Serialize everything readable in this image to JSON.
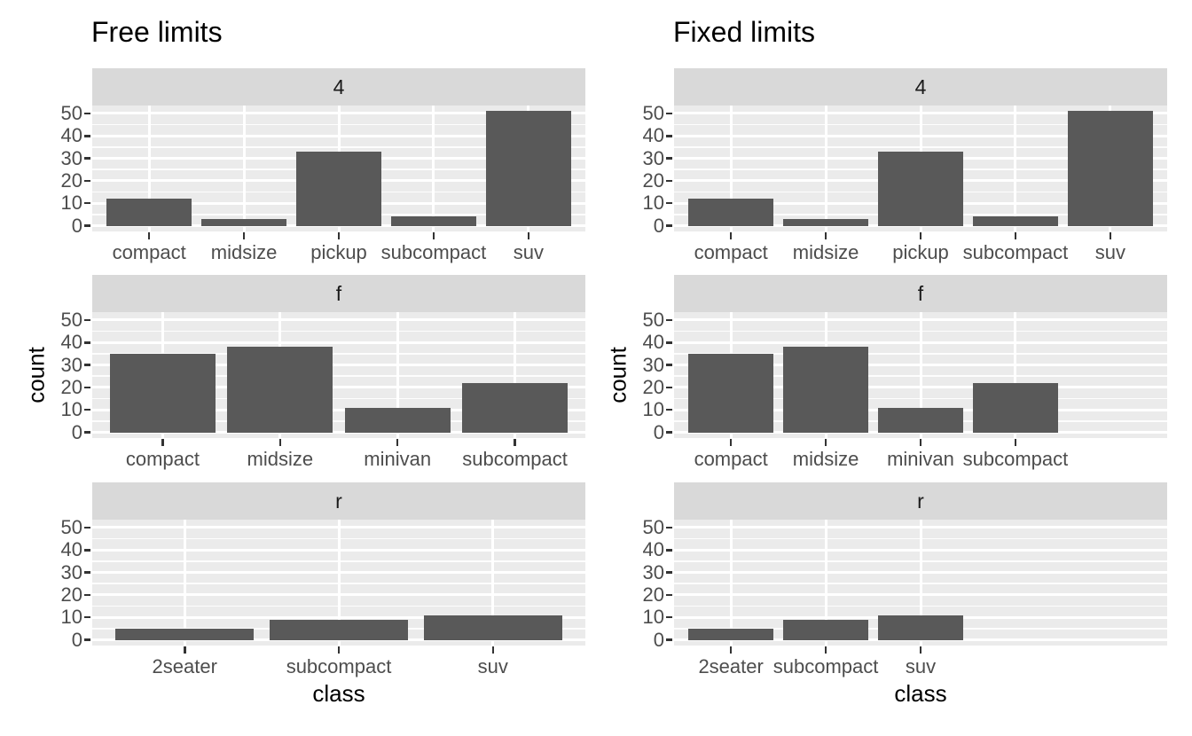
{
  "colors": {
    "background": "#FFFFFF",
    "bar_fill": "#595959",
    "panel_background": "#EBEBEB",
    "strip_background": "#D9D9D9",
    "grid": "#FFFFFF",
    "axis_text": "#4D4D4D",
    "strip_text": "#1A1A1A",
    "title_text": "#000000",
    "tick_mark": "#333333"
  },
  "chart_data": [
    {
      "type": "bar",
      "title": "Free limits",
      "xlabel": "class",
      "ylabel": "count",
      "ylim": [
        -2.55,
        53.55
      ],
      "y_ticks": [
        0,
        10,
        20,
        30,
        40,
        50
      ],
      "y_minor_ticks": [
        5,
        15,
        25,
        35,
        45
      ],
      "grid": "on",
      "x_scale": "free",
      "facets": [
        {
          "label": "4",
          "categories": [
            "compact",
            "midsize",
            "pickup",
            "subcompact",
            "suv"
          ],
          "values": [
            12,
            3,
            33,
            4,
            51
          ]
        },
        {
          "label": "f",
          "categories": [
            "compact",
            "midsize",
            "minivan",
            "subcompact"
          ],
          "values": [
            35,
            38,
            11,
            22
          ]
        },
        {
          "label": "r",
          "categories": [
            "2seater",
            "subcompact",
            "suv"
          ],
          "values": [
            5,
            9,
            11
          ]
        }
      ]
    },
    {
      "type": "bar",
      "title": "Fixed limits",
      "xlabel": "class",
      "ylabel": "count",
      "ylim": [
        -2.55,
        53.55
      ],
      "y_ticks": [
        0,
        10,
        20,
        30,
        40,
        50
      ],
      "y_minor_ticks": [
        5,
        15,
        25,
        35,
        45
      ],
      "grid": "on",
      "x_scale": "fixed",
      "x_slots": 5,
      "facets": [
        {
          "label": "4",
          "categories": [
            "compact",
            "midsize",
            "pickup",
            "subcompact",
            "suv"
          ],
          "values": [
            12,
            3,
            33,
            4,
            51
          ]
        },
        {
          "label": "f",
          "categories": [
            "compact",
            "midsize",
            "minivan",
            "subcompact"
          ],
          "values": [
            35,
            38,
            11,
            22
          ]
        },
        {
          "label": "r",
          "categories": [
            "2seater",
            "subcompact",
            "suv"
          ],
          "values": [
            5,
            9,
            11
          ]
        }
      ]
    }
  ]
}
